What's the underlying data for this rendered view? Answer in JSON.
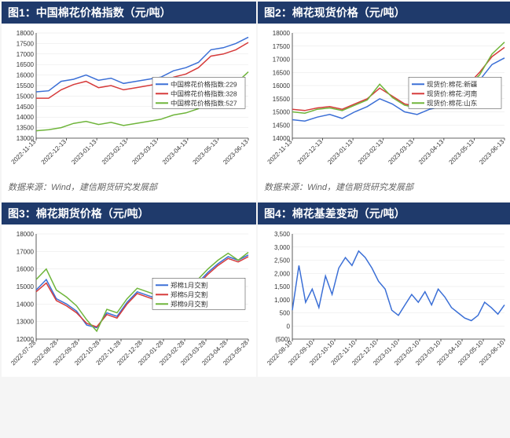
{
  "panels": [
    {
      "title": "图1：中国棉花价格指数（元/吨）",
      "source": "数据来源：Wind，建信期货研究发展部",
      "chart": {
        "type": "line",
        "background_color": "#ffffff",
        "grid_color": "#e5e5e5",
        "axis_color": "#333333",
        "title_bg": "#1f3a6b",
        "title_color": "#ffffff",
        "title_fontsize": 14,
        "label_fontsize": 9,
        "legend_fontsize": 8.5,
        "ylim": [
          13000,
          18000
        ],
        "ytick_step": 500,
        "yticks": [
          13000,
          13500,
          14000,
          14500,
          15000,
          15500,
          16000,
          16500,
          17000,
          17500,
          18000
        ],
        "xticks": [
          "2022-11-13",
          "2022-12-13",
          "2023-01-13",
          "2023-02-13",
          "2023-03-13",
          "2023-04-13",
          "2023-05-13",
          "2023-06-13"
        ],
        "legend_position": "inside-right-center",
        "legend_box_border": "#333333",
        "line_width": 1.5,
        "series": [
          {
            "name": "中国棉花价格指数:229",
            "color": "#3b6fd6",
            "values": [
              15200,
              15250,
              15700,
              15800,
              16000,
              15750,
              15850,
              15600,
              15700,
              15800,
              15900,
              16200,
              16350,
              16600,
              17200,
              17300,
              17500,
              17800
            ]
          },
          {
            "name": "中国棉花价格指数:328",
            "color": "#d63b3b",
            "values": [
              14900,
              14900,
              15300,
              15550,
              15700,
              15400,
              15500,
              15300,
              15400,
              15500,
              15600,
              15900,
              16050,
              16350,
              16900,
              17000,
              17200,
              17550
            ]
          },
          {
            "name": "中国棉花价格指数:527",
            "color": "#6fb53b",
            "values": [
              13350,
              13400,
              13500,
              13700,
              13800,
              13650,
              13750,
              13600,
              13700,
              13800,
              13900,
              14100,
              14200,
              14400,
              14900,
              15100,
              15600,
              16150
            ]
          }
        ],
        "n_points": 18
      }
    },
    {
      "title": "图2：棉花现货价格（元/吨）",
      "source": "数据来源：Wind，建信期货研究发展部",
      "chart": {
        "type": "line",
        "background_color": "#ffffff",
        "grid_color": "#e5e5e5",
        "axis_color": "#333333",
        "title_bg": "#1f3a6b",
        "title_color": "#ffffff",
        "title_fontsize": 14,
        "label_fontsize": 9,
        "legend_fontsize": 8.5,
        "ylim": [
          14000,
          18000
        ],
        "ytick_step": 500,
        "yticks": [
          14000,
          14500,
          15000,
          15500,
          16000,
          16500,
          17000,
          17500,
          18000
        ],
        "xticks": [
          "2022-11-13",
          "2022-12-13",
          "2023-01-13",
          "2023-02-13",
          "2023-03-13",
          "2023-04-13",
          "2023-05-13",
          "2023-06-13"
        ],
        "legend_position": "inside-right-center",
        "legend_box_border": "#333333",
        "line_width": 1.5,
        "series": [
          {
            "name": "现货价:棉花:新疆",
            "color": "#3b6fd6",
            "values": [
              14700,
              14650,
              14800,
              14900,
              14750,
              15000,
              15200,
              15500,
              15300,
              15000,
              14900,
              15100,
              15200,
              15400,
              15700,
              16200,
              16800,
              17050
            ]
          },
          {
            "name": "现货价:棉花:河南",
            "color": "#d63b3b",
            "values": [
              15100,
              15050,
              15150,
              15200,
              15100,
              15300,
              15500,
              15900,
              15600,
              15300,
              15200,
              15400,
              15500,
              15700,
              16000,
              16500,
              17100,
              17450
            ]
          },
          {
            "name": "现货价:棉花:山东",
            "color": "#6fb53b",
            "values": [
              15000,
              14950,
              15100,
              15150,
              15050,
              15250,
              15450,
              16050,
              15550,
              15250,
              15150,
              15350,
              15450,
              15650,
              15950,
              16400,
              17200,
              17650
            ]
          }
        ],
        "n_points": 18
      }
    },
    {
      "title": "图3：棉花期货价格（元/吨）",
      "source": null,
      "chart": {
        "type": "line",
        "background_color": "#ffffff",
        "grid_color": "#e5e5e5",
        "axis_color": "#333333",
        "title_bg": "#1f3a6b",
        "title_color": "#ffffff",
        "title_fontsize": 14,
        "label_fontsize": 9,
        "legend_fontsize": 8.5,
        "ylim": [
          12000,
          18000
        ],
        "ytick_step": 1000,
        "yticks": [
          12000,
          13000,
          14000,
          15000,
          16000,
          17000,
          18000
        ],
        "xticks": [
          "2022-07-28",
          "2022-08-28",
          "2022-09-28",
          "2022-10-28",
          "2022-11-28",
          "2022-12-28",
          "2023-01-28",
          "2023-02-28",
          "2023-03-28",
          "2023-04-28",
          "2023-05-28"
        ],
        "legend_position": "inside-right-center",
        "legend_box_border": "#333333",
        "line_width": 1.5,
        "series": [
          {
            "name": "郑棉1月交割",
            "color": "#3b6fd6",
            "values": [
              14800,
              15400,
              14300,
              14000,
              13600,
              12800,
              12650,
              13500,
              13300,
              14100,
              14700,
              14500,
              14300,
              14900,
              14800,
              14700,
              15200,
              15800,
              16300,
              16700,
              16500,
              16800
            ]
          },
          {
            "name": "郑棉5月交割",
            "color": "#d63b3b",
            "values": [
              14700,
              15200,
              14200,
              13900,
              13500,
              12900,
              12700,
              13400,
              13200,
              14000,
              14600,
              14400,
              14200,
              14800,
              14700,
              14600,
              15100,
              15700,
              16200,
              16600,
              16400,
              16700
            ]
          },
          {
            "name": "郑棉9月交割",
            "color": "#6fb53b",
            "values": [
              15400,
              16000,
              14800,
              14400,
              13900,
              13100,
              12450,
              13700,
              13500,
              14300,
              14900,
              14700,
              14500,
              15100,
              15000,
              14900,
              15400,
              16000,
              16500,
              16900,
              16500,
              16950
            ]
          }
        ],
        "n_points": 22
      }
    },
    {
      "title": "图4：棉花基差变动（元/吨）",
      "source": null,
      "chart": {
        "type": "line",
        "background_color": "#ffffff",
        "grid_color": "#e5e5e5",
        "axis_color": "#333333",
        "title_bg": "#1f3a6b",
        "title_color": "#ffffff",
        "title_fontsize": 14,
        "label_fontsize": 9,
        "legend_fontsize": 8.5,
        "ylim": [
          -500,
          3500
        ],
        "ytick_step": 500,
        "yticks": [
          -500,
          0,
          500,
          1000,
          1500,
          2000,
          2500,
          3000,
          3500
        ],
        "ytick_labels": [
          "(500)",
          "0",
          "500",
          "1,000",
          "1,500",
          "2,000",
          "2,500",
          "3,000",
          "3,500"
        ],
        "xticks": [
          "2022-08-10",
          "2022-09-10",
          "2022-10-10",
          "2022-11-10",
          "2022-12-10",
          "2023-01-10",
          "2023-02-10",
          "2023-03-10",
          "2023-04-10",
          "2023-05-10",
          "2023-06-10"
        ],
        "legend_position": "none",
        "line_width": 1.5,
        "series": [
          {
            "name": "基差",
            "color": "#3b6fd6",
            "values": [
              600,
              2300,
              900,
              1400,
              700,
              1900,
              1200,
              2200,
              2600,
              2300,
              2850,
              2600,
              2200,
              1700,
              1400,
              600,
              400,
              800,
              1200,
              900,
              1300,
              800,
              1400,
              1100,
              700,
              500,
              300,
              200,
              400,
              900,
              700,
              450,
              800
            ]
          }
        ],
        "n_points": 33
      }
    }
  ]
}
